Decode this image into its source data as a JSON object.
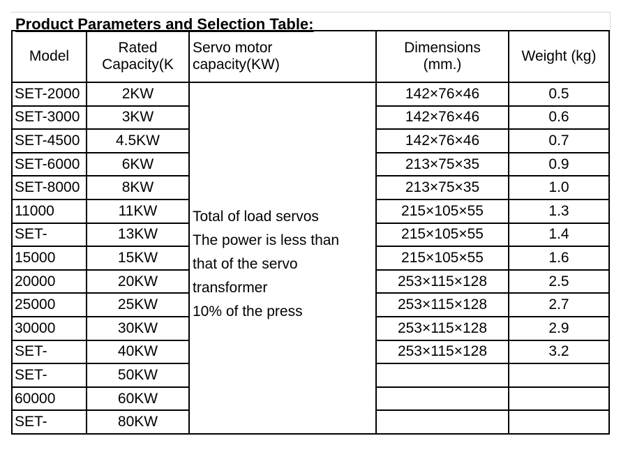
{
  "title": "Product Parameters and Selection Table:",
  "headers": {
    "model": "Model",
    "rated_line1": "Rated",
    "rated_line2": "Capacity(K",
    "servo_line1": "Servo motor",
    "servo_line2": "capacity(KW)",
    "dims_line1": "Dimensions",
    "dims_line2": "(mm.)",
    "weight": "Weight (kg)"
  },
  "servo_note": [
    "Total of load servos",
    "The power is less than",
    "that of the servo",
    "transformer",
    "10% of the press"
  ],
  "rows": [
    {
      "model": "SET-2000",
      "capacity": "2KW",
      "dimensions": "142×76×46",
      "weight": "0.5"
    },
    {
      "model": "SET-3000",
      "capacity": "3KW",
      "dimensions": "142×76×46",
      "weight": "0.6"
    },
    {
      "model": "SET-4500",
      "capacity": "4.5KW",
      "dimensions": "142×76×46",
      "weight": "0.7"
    },
    {
      "model": "SET-6000",
      "capacity": "6KW",
      "dimensions": "213×75×35",
      "weight": "0.9"
    },
    {
      "model": "SET-8000",
      "capacity": "8KW",
      "dimensions": "213×75×35",
      "weight": "1.0"
    },
    {
      "model": "11000",
      "capacity": "11KW",
      "dimensions": "215×105×55",
      "weight": "1.3"
    },
    {
      "model": "SET-",
      "capacity": "13KW",
      "dimensions": "215×105×55",
      "weight": "1.4"
    },
    {
      "model": "15000",
      "capacity": "15KW",
      "dimensions": "215×105×55",
      "weight": "1.6"
    },
    {
      "model": "20000",
      "capacity": "20KW",
      "dimensions": "253×115×128",
      "weight": "2.5"
    },
    {
      "model": "25000",
      "capacity": "25KW",
      "dimensions": "253×115×128",
      "weight": "2.7"
    },
    {
      "model": "30000",
      "capacity": "30KW",
      "dimensions": "253×115×128",
      "weight": "2.9"
    },
    {
      "model": "SET-",
      "capacity": "40KW",
      "dimensions": "253×115×128",
      "weight": "3.2"
    },
    {
      "model": "SET-",
      "capacity": "50KW",
      "dimensions": "",
      "weight": ""
    },
    {
      "model": "60000",
      "capacity": "60KW",
      "dimensions": "",
      "weight": ""
    },
    {
      "model": "SET-",
      "capacity": "80KW",
      "dimensions": "",
      "weight": ""
    }
  ]
}
